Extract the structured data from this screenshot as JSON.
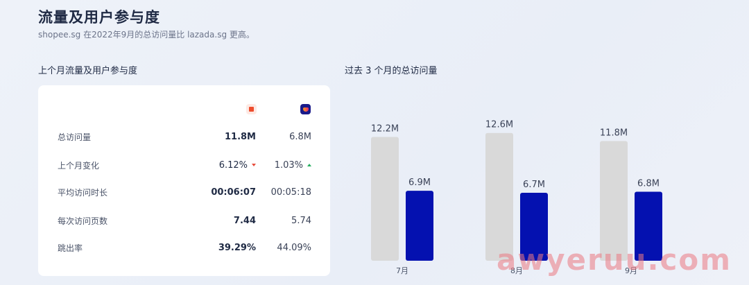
{
  "header": {
    "title": "流量及用户参与度",
    "subtitle": "shopee.sg 在2022年9月的总访问量比 lazada.sg 更高。"
  },
  "left_section": {
    "title": "上个月流量及用户参与度",
    "logos": [
      {
        "icon": "shopee-logo-icon",
        "color": "#ee4d2d"
      },
      {
        "icon": "lazada-logo-icon",
        "color": "#1a1a8a"
      }
    ],
    "rows": [
      {
        "label": "总访问量",
        "shopee": "11.8M",
        "lazada": "6.8M"
      },
      {
        "label": "上个月变化",
        "shopee": "6.12%",
        "lazada": "1.03%",
        "shopee_trend": "down",
        "lazada_trend": "up"
      },
      {
        "label": "平均访问时长",
        "shopee": "00:06:07",
        "lazada": "00:05:18"
      },
      {
        "label": "每次访问页数",
        "shopee": "7.44",
        "lazada": "5.74"
      },
      {
        "label": "跳出率",
        "shopee": "39.29%",
        "lazada": "44.09%"
      }
    ]
  },
  "right_section": {
    "title": "过去 3 个月的总访问量"
  },
  "chart_data": {
    "type": "bar",
    "categories": [
      "7月",
      "8月",
      "9月"
    ],
    "series": [
      {
        "values": [
          12.2,
          12.6,
          11.8
        ],
        "labels": [
          "12.2M",
          "12.6M",
          "11.8M"
        ],
        "color": "#d9d9d9"
      },
      {
        "values": [
          6.9,
          6.7,
          6.8
        ],
        "labels": [
          "6.9M",
          "6.7M",
          "6.8M"
        ],
        "color": "#0411b0"
      }
    ],
    "ylim": [
      0,
      13.4
    ]
  },
  "watermark": "awyeruu.com"
}
